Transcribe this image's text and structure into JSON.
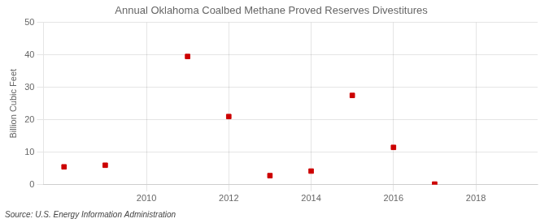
{
  "chart_data": {
    "type": "scatter",
    "title": "Annual Oklahoma Coalbed Methane Proved Reserves Divestitures",
    "ylabel": "Billion Cubic Feet",
    "annotation": "Source: U.S. Energy Information Administration",
    "x": [
      2008,
      2009,
      2011,
      2012,
      2013,
      2014,
      2015,
      2016,
      2017
    ],
    "values": [
      5.5,
      6.0,
      39.5,
      21.0,
      2.8,
      4.2,
      27.5,
      11.5,
      0.2
    ],
    "color": "#cc0000",
    "marker": "square",
    "xlim": [
      2007.5,
      2019.5
    ],
    "ylim": [
      0,
      50
    ],
    "xticks": [
      2010,
      2012,
      2014,
      2016,
      2018
    ],
    "yticks": [
      0,
      10,
      20,
      30,
      40,
      50
    ],
    "grid": true
  }
}
